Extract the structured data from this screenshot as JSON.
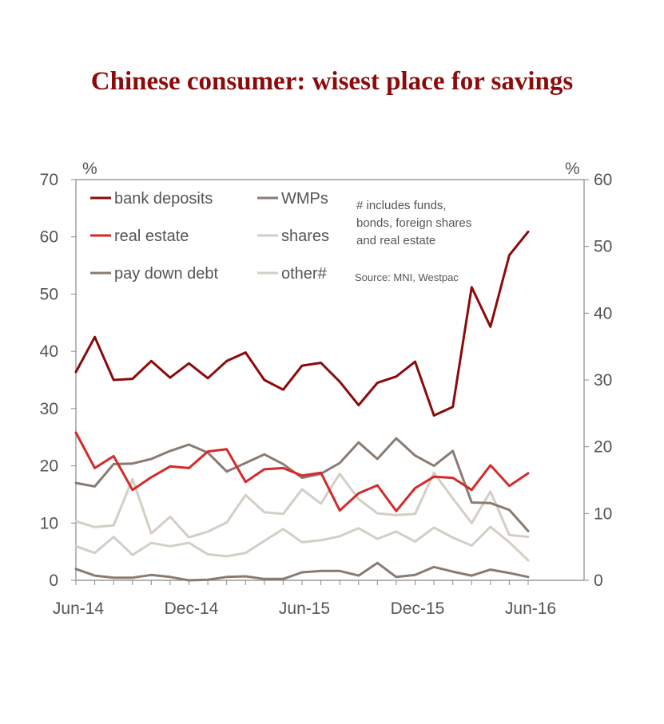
{
  "chart_data": {
    "type": "line",
    "title": "Chinese consumer: wisest place for savings",
    "left_axis_unit": "%",
    "right_axis_unit": "%",
    "x": [
      "Jun-14",
      "Jul-14",
      "Aug-14",
      "Sep-14",
      "Oct-14",
      "Nov-14",
      "Dec-14",
      "Jan-15",
      "Feb-15",
      "Mar-15",
      "Apr-15",
      "May-15",
      "Jun-15",
      "Jul-15",
      "Aug-15",
      "Sep-15",
      "Oct-15",
      "Nov-15",
      "Dec-15",
      "Jan-16",
      "Feb-16",
      "Mar-16",
      "Apr-16",
      "May-16",
      "Jun-16"
    ],
    "x_ticks": [
      "Jun-14",
      "Dec-14",
      "Jun-15",
      "Dec-15",
      "Jun-16"
    ],
    "ylim_left": [
      0,
      70
    ],
    "yticks_left": [
      "0",
      "10",
      "20",
      "30",
      "40",
      "50",
      "60",
      "70"
    ],
    "ylim_right": [
      0,
      60
    ],
    "yticks_right": [
      "0",
      "10",
      "20",
      "30",
      "40",
      "50",
      "60"
    ],
    "grid": false,
    "legend": [
      {
        "key": "bank",
        "label": "bank deposits"
      },
      {
        "key": "wmp",
        "label": "WMPs"
      },
      {
        "key": "real",
        "label": "real estate"
      },
      {
        "key": "shares",
        "label": "shares"
      },
      {
        "key": "debt",
        "label": "pay down debt"
      },
      {
        "key": "other",
        "label": "other#"
      }
    ],
    "note": [
      "# includes funds,",
      "bonds, foreign shares",
      "and real estate"
    ],
    "source": "Source: MNI, Westpac",
    "series": [
      {
        "key": "bank",
        "name": "bank deposits",
        "color": "#8b0a0a",
        "axis": "left",
        "values": [
          36.4,
          42.5,
          35.0,
          35.2,
          38.3,
          35.4,
          37.9,
          35.3,
          38.3,
          39.8,
          35.0,
          33.3,
          37.5,
          38.0,
          34.7,
          30.6,
          34.5,
          35.6,
          38.2,
          28.8,
          30.3,
          51.2,
          44.3,
          56.8,
          60.9
        ]
      },
      {
        "key": "wmp",
        "name": "WMPs",
        "color": "#8a7b72",
        "axis": "left",
        "values": [
          17.0,
          16.4,
          20.3,
          20.4,
          21.2,
          22.6,
          23.7,
          22.3,
          19.0,
          20.5,
          22.0,
          20.3,
          17.9,
          18.6,
          20.5,
          24.1,
          21.2,
          24.8,
          21.8,
          20.0,
          22.6,
          13.6,
          13.5,
          12.3,
          8.6
        ]
      },
      {
        "key": "real",
        "name": "real estate",
        "color": "#d42a2a",
        "axis": "left",
        "values": [
          25.8,
          19.6,
          21.7,
          15.8,
          18.0,
          19.9,
          19.6,
          22.5,
          22.9,
          17.2,
          19.4,
          19.6,
          18.3,
          18.8,
          12.2,
          15.2,
          16.6,
          12.1,
          16.1,
          18.1,
          17.9,
          15.8,
          20.1,
          16.5,
          18.7
        ]
      },
      {
        "key": "shares",
        "name": "shares",
        "color": "#d4cec5",
        "axis": "left",
        "values": [
          10.3,
          9.3,
          9.6,
          17.7,
          8.2,
          11.1,
          7.5,
          8.5,
          10.1,
          14.9,
          11.9,
          11.6,
          15.9,
          13.4,
          18.6,
          14.2,
          11.7,
          11.4,
          11.6,
          18.8,
          14.3,
          10.0,
          15.5,
          7.9,
          7.6
        ]
      },
      {
        "key": "debt",
        "name": "pay down debt",
        "color": "#8a7b72",
        "axis": "right",
        "values": [
          1.7,
          0.7,
          0.4,
          0.4,
          0.8,
          0.5,
          0.0,
          0.1,
          0.5,
          0.6,
          0.2,
          0.2,
          1.2,
          1.4,
          1.4,
          0.7,
          2.6,
          0.5,
          0.8,
          2.0,
          1.3,
          0.7,
          1.6,
          1.1,
          0.5
        ]
      },
      {
        "key": "other",
        "name": "other#",
        "color": "#d4cec5",
        "axis": "right",
        "values": [
          5.1,
          4.1,
          6.5,
          3.8,
          5.6,
          5.1,
          5.6,
          3.9,
          3.6,
          4.1,
          5.9,
          7.7,
          5.7,
          6.0,
          6.6,
          7.8,
          6.2,
          7.3,
          5.8,
          7.9,
          6.4,
          5.2,
          8.0,
          5.7,
          3.0
        ]
      }
    ]
  }
}
